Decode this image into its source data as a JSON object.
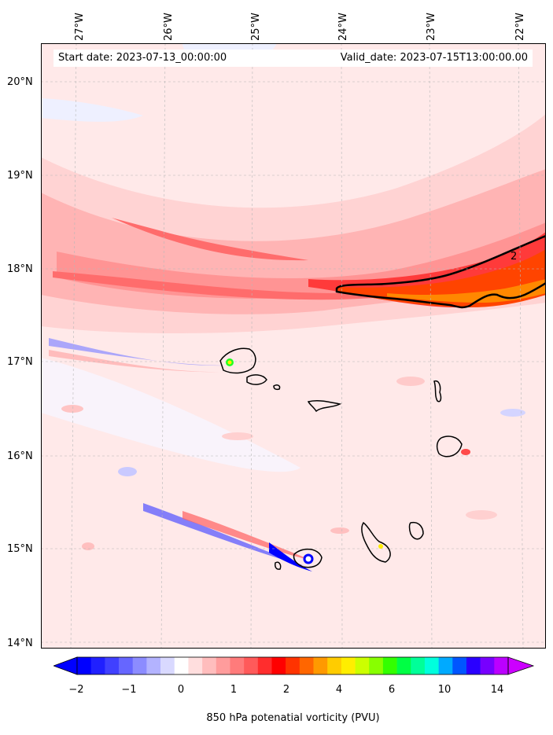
{
  "map": {
    "start_date": "Start date: 2023-07-13_00:00:00",
    "valid_date": "Valid_date: 2023-07-15T13:00:00.00",
    "contour_label": "2",
    "longitude_ticks": [
      "27°W",
      "26°W",
      "25°W",
      "24°W",
      "23°W",
      "22°W"
    ],
    "latitude_ticks": [
      "20°N",
      "19°N",
      "18°N",
      "17°N",
      "16°N",
      "15°N",
      "14°N"
    ],
    "islands": [
      "Santo Antão",
      "São Vicente",
      "Santa Luzia",
      "São Nicolau",
      "Sal",
      "Boa Vista",
      "Maio",
      "Santiago",
      "Fogo",
      "Brava"
    ]
  },
  "colorbar": {
    "label": "850 hPa potenatial vorticity (PVU)",
    "tick_labels": [
      "−2",
      "−1",
      "0",
      "1",
      "2",
      "4",
      "6",
      "10",
      "14"
    ],
    "colors": [
      "#0000ff",
      "#2020ff",
      "#4040ff",
      "#6666ff",
      "#8c8cff",
      "#b3b3ff",
      "#d9d9ff",
      "#ffffff",
      "#ffdede",
      "#ffbdbd",
      "#ff9c9c",
      "#ff7b7b",
      "#ff5a5a",
      "#ff2d2d",
      "#ff0000",
      "#ff3300",
      "#ff6600",
      "#ff9900",
      "#ffcc00",
      "#ffee00",
      "#ccff00",
      "#88ff00",
      "#33ff00",
      "#00ff44",
      "#00ff99",
      "#00ffdd",
      "#00aaff",
      "#0055ff",
      "#2a00ff",
      "#7700ff",
      "#bb00ff"
    ],
    "extend_low": "#0000ff",
    "extend_high": "#cc00ff"
  }
}
